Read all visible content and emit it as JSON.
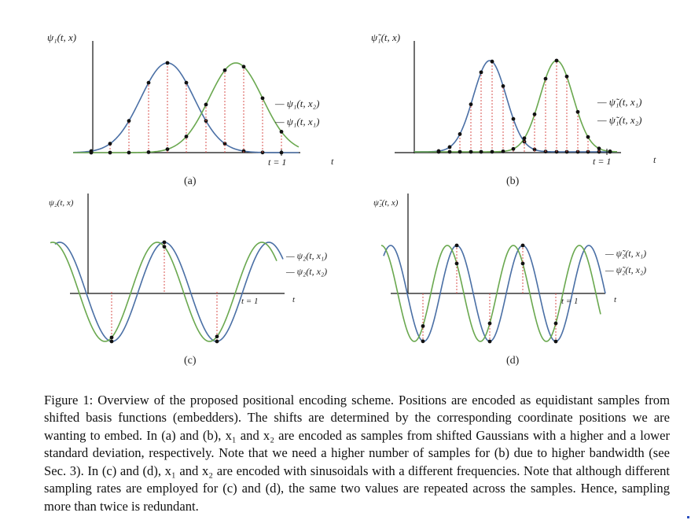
{
  "figure": {
    "panels": [
      {
        "id": "a",
        "label": "(a)",
        "y_label": "ψ₁(t, x)",
        "t_label": "t",
        "tick_label": "t = 1",
        "legend": [
          "— ψ₁(t, x₂)",
          "— ψ₁(t, x₁)"
        ],
        "colors": [
          "#4a6fa5",
          "#6aa84f"
        ]
      },
      {
        "id": "b",
        "label": "(b)",
        "y_label": "ψ̃₁(t, x)",
        "t_label": "t",
        "tick_label": "t = 1",
        "legend": [
          "— ψ̃₁(t, x₁)",
          "— ψ̃₁(t, x₂)"
        ],
        "colors": [
          "#4a6fa5",
          "#6aa84f"
        ]
      },
      {
        "id": "c",
        "label": "(c)",
        "y_label": "ψ₂(t, x)",
        "t_label": "t",
        "tick_label": "t = 1",
        "legend": [
          "— ψ₂(t, x₁)",
          "— ψ₂(t, x₂)"
        ],
        "colors": [
          "#4a6fa5",
          "#6aa84f"
        ]
      },
      {
        "id": "d",
        "label": "(d)",
        "y_label": "ψ̃₂(t, x)",
        "t_label": "t",
        "tick_label": "t = 1",
        "legend": [
          "— ψ̃₂(t, x₁)",
          "— ψ̃₂(t, x₂)"
        ],
        "colors": [
          "#4a6fa5",
          "#6aa84f"
        ]
      }
    ],
    "caption": "Figure 1: Overview of the proposed positional encoding scheme. Positions are encoded as equidistant samples from shifted basis functions (embedders). The shifts are determined by the corresponding coordinate positions we are wanting to embed. In (a) and (b), x₁ and x₂ are encoded as samples from shifted Gaussians with a higher and a lower standard deviation, respectively. Note that we need a higher number of samples for (b) due to higher bandwidth (see Sec. 3). In (c) and (d), x₁ and x₂ are encoded with sinusoidals with a different frequencies. Note that although different sampling rates are employed for (c) and (d), the same two values are repeated across the samples. Hence, sampling more than twice is redundant."
  }
}
